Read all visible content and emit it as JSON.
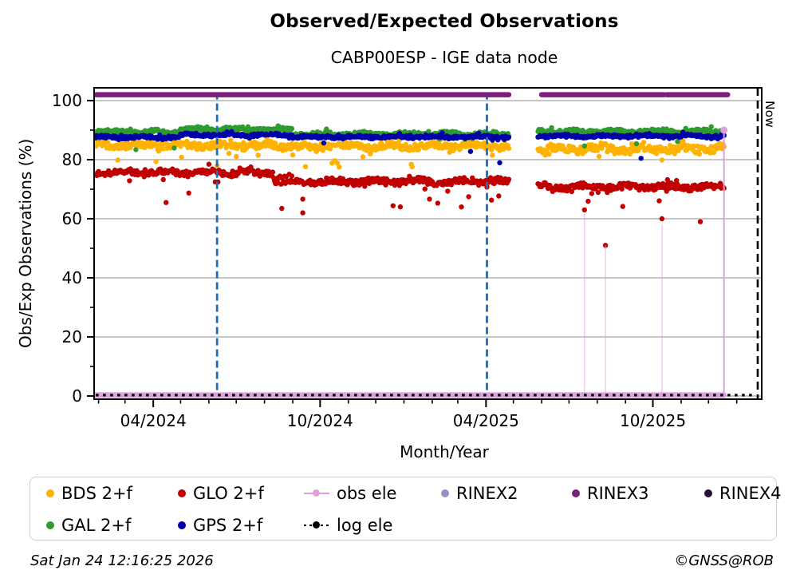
{
  "header": {
    "title": "Observed/Expected Observations",
    "subtitle": "CABP00ESP - IGE data node"
  },
  "footer": {
    "timestamp": "Sat Jan 24 12:16:25 2026",
    "copyright": "©GNSS@ROB"
  },
  "now_marker": {
    "label": "Now",
    "date": "2026-01-24",
    "color": "#000000"
  },
  "chart_data": {
    "type": "scatter",
    "title": "Observed/Expected Observations",
    "subtitle": "CABP00ESP - IGE data node",
    "xlabel": "Month/Year",
    "ylabel": "Obs/Exp Observations (%)",
    "ylim": [
      0,
      104
    ],
    "yticks": [
      0,
      20,
      40,
      60,
      80,
      100
    ],
    "yticks_minor": [
      10,
      30,
      50,
      70,
      90
    ],
    "xticks": [
      {
        "label": "04/2024",
        "date": "2024-04-01"
      },
      {
        "label": "10/2024",
        "date": "2024-10-01"
      },
      {
        "label": "04/2025",
        "date": "2025-04-01"
      },
      {
        "label": "10/2025",
        "date": "2025-10-01"
      }
    ],
    "x_axis": {
      "start": "2024-01-28",
      "end": "2026-01-28",
      "minor_tick_unit": "month"
    },
    "grid": true,
    "grid_color": "#b3b3b3",
    "data_gaps": [
      {
        "from": "2025-04-27",
        "to": "2025-05-27"
      }
    ],
    "event_lines": [
      {
        "date": "2024-06-10",
        "color": "#1B6EC2",
        "style": "dashed"
      },
      {
        "date": "2025-04-02",
        "color": "#1B6EC2",
        "style": "dashed"
      }
    ],
    "series": [
      {
        "id": "bds",
        "label": "BDS 2+f",
        "color": "#FFB300",
        "start": "2024-01-29",
        "end": "2025-12-18",
        "phase": 1.2,
        "outlier_rate": 0.035,
        "outlier_drop": [
          2,
          7
        ],
        "segments": [
          {
            "from": "2024-01-29",
            "to": "2024-08-31",
            "mean": 84.9,
            "spread": 1.2
          },
          {
            "from": "2024-09-01",
            "to": "2025-04-26",
            "mean": 84.6,
            "spread": 1.2
          },
          {
            "from": "2025-05-28",
            "to": "2025-12-18",
            "mean": 83.7,
            "spread": 1.5
          }
        ],
        "outliers": []
      },
      {
        "id": "glo",
        "label": "GLO 2+f",
        "color": "#C00000",
        "start": "2024-01-29",
        "end": "2025-12-18",
        "phase": 3.4,
        "outlier_rate": 0.03,
        "outlier_drop": [
          2,
          8
        ],
        "segments": [
          {
            "from": "2024-01-29",
            "to": "2024-08-10",
            "mean": 75.7,
            "spread": 1.0
          },
          {
            "from": "2024-08-11",
            "to": "2024-08-31",
            "mean": 73.0,
            "spread": 1.8
          },
          {
            "from": "2024-09-01",
            "to": "2025-04-26",
            "mean": 72.6,
            "spread": 1.1
          },
          {
            "from": "2025-05-28",
            "to": "2025-12-18",
            "mean": 70.8,
            "spread": 1.1
          }
        ],
        "outliers": [
          [
            "2024-04-15",
            65.5
          ],
          [
            "2024-08-20",
            63.5
          ],
          [
            "2024-09-12",
            62
          ],
          [
            "2025-03-05",
            64
          ],
          [
            "2025-07-18",
            63
          ],
          [
            "2025-08-10",
            51
          ],
          [
            "2025-10-11",
            60
          ],
          [
            "2025-11-22",
            59
          ]
        ]
      },
      {
        "id": "gal",
        "label": "GAL 2+f",
        "color": "#2E9B2E",
        "start": "2024-01-29",
        "end": "2025-12-18",
        "phase": 5.1,
        "outlier_rate": 0.015,
        "outlier_drop": [
          2,
          6
        ],
        "segments": [
          {
            "from": "2024-01-29",
            "to": "2024-04-30",
            "mean": 89.4,
            "spread": 0.7
          },
          {
            "from": "2024-05-01",
            "to": "2024-08-31",
            "mean": 90.3,
            "spread": 0.7
          },
          {
            "from": "2024-09-01",
            "to": "2025-04-26",
            "mean": 88.6,
            "spread": 0.8
          },
          {
            "from": "2025-05-28",
            "to": "2025-12-18",
            "mean": 89.6,
            "spread": 0.7
          }
        ],
        "outliers": []
      },
      {
        "id": "gps",
        "label": "GPS 2+f",
        "color": "#0000A8",
        "start": "2024-01-29",
        "end": "2025-12-18",
        "phase": 0.4,
        "outlier_rate": 0.008,
        "outlier_drop": [
          2,
          9
        ],
        "segments": [
          {
            "from": "2024-01-29",
            "to": "2024-04-30",
            "mean": 87.6,
            "spread": 0.5
          },
          {
            "from": "2024-05-01",
            "to": "2024-08-31",
            "mean": 88.4,
            "spread": 0.5
          },
          {
            "from": "2024-09-01",
            "to": "2025-04-26",
            "mean": 87.7,
            "spread": 0.5
          },
          {
            "from": "2025-05-28",
            "to": "2025-12-18",
            "mean": 88.0,
            "spread": 0.5
          }
        ],
        "outliers": []
      }
    ],
    "rinex3_band": {
      "label": "RINEX3",
      "color": "#7D1D7D",
      "value": 102,
      "segments": [
        [
          "2024-01-29",
          "2025-04-26"
        ],
        [
          "2025-06-01",
          "2025-10-13"
        ],
        [
          "2025-10-16",
          "2025-12-22"
        ]
      ]
    },
    "obs_ele": {
      "label": "obs ele",
      "color": "#DDA0DD",
      "baseline_value": 0.3,
      "from": "2024-01-29",
      "to": "2025-12-18",
      "final_spike": {
        "date": "2025-12-18",
        "value": 90
      },
      "faint_spikes": [
        {
          "date": "2025-07-18",
          "value": 62
        },
        {
          "date": "2025-08-10",
          "value": 51
        },
        {
          "date": "2025-10-11",
          "value": 58
        }
      ]
    },
    "log_ele": {
      "label": "log ele",
      "color": "#000000",
      "value": 0.3,
      "from": "2024-01-29",
      "to": "2026-01-22",
      "style": "dotted"
    }
  },
  "legend": {
    "rows": [
      [
        "bds",
        "glo",
        "obs_ele",
        "rinex2",
        "rinex3",
        "rinex4"
      ],
      [
        "gal",
        "gps",
        "log_ele"
      ]
    ],
    "entries": {
      "bds": {
        "label": "BDS 2+f",
        "marker": "dot",
        "color": "#FFB300"
      },
      "glo": {
        "label": "GLO 2+f",
        "marker": "dot",
        "color": "#C00000"
      },
      "obs_ele": {
        "label": "obs ele",
        "marker": "line-dot",
        "color": "#DDA0DD"
      },
      "rinex2": {
        "label": "RINEX2",
        "marker": "dot",
        "color": "#9B8FC9"
      },
      "rinex3": {
        "label": "RINEX3",
        "marker": "dot",
        "color": "#7D1D7D"
      },
      "rinex4": {
        "label": "RINEX4",
        "marker": "dot",
        "color": "#2B0E33"
      },
      "gal": {
        "label": "GAL 2+f",
        "marker": "dot",
        "color": "#2E9B2E"
      },
      "gps": {
        "label": "GPS 2+f",
        "marker": "dot",
        "color": "#0000A8"
      },
      "log_ele": {
        "label": "log ele",
        "marker": "dotted-line-dot",
        "color": "#000000"
      }
    }
  }
}
